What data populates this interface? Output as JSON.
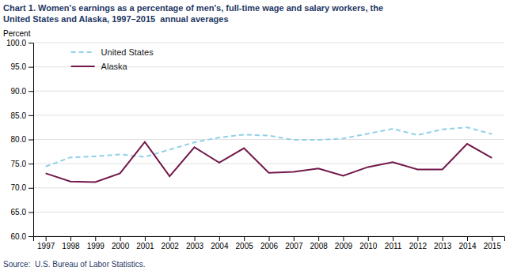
{
  "chart_data": {
    "type": "line",
    "title": [
      "Chart 1. Women's earnings as a percentage of men's, full-time wage and salary workers, the",
      "United States and Alaska, 1997–2015  annual averages"
    ],
    "y_label": "Percent",
    "annotations": [
      "Source:  U.S. Bureau of Labor Statistics."
    ],
    "x": [
      1997,
      1998,
      1999,
      2000,
      2001,
      2002,
      2003,
      2004,
      2005,
      2006,
      2007,
      2008,
      2009,
      2010,
      2011,
      2012,
      2013,
      2014,
      2015
    ],
    "series": [
      {
        "name": "United States",
        "color": "#92d0e8",
        "line_style": "dashed",
        "values": [
          74.4,
          76.3,
          76.5,
          76.9,
          76.4,
          77.9,
          79.4,
          80.4,
          81.0,
          80.8,
          79.9,
          79.9,
          80.2,
          81.2,
          82.2,
          80.9,
          82.1,
          82.5,
          81.1
        ]
      },
      {
        "name": "Alaska",
        "color": "#72184a",
        "line_style": "solid",
        "values": [
          73.0,
          71.3,
          71.2,
          73.0,
          79.5,
          72.4,
          78.4,
          75.2,
          78.2,
          73.1,
          73.3,
          74.0,
          72.5,
          74.3,
          75.3,
          73.8,
          73.8,
          79.1,
          76.2
        ]
      }
    ],
    "xlim": [
      1996.5,
      2015.5
    ],
    "xticks": [
      1997,
      1998,
      1999,
      2000,
      2001,
      2002,
      2003,
      2004,
      2005,
      2006,
      2007,
      2008,
      2009,
      2010,
      2011,
      2012,
      2013,
      2014,
      2015
    ],
    "ylim": [
      60.0,
      100.0
    ],
    "yticks": [
      {
        "value": 60.0,
        "label": "60.0"
      },
      {
        "value": 65.0,
        "label": "65.0"
      },
      {
        "value": 70.0,
        "label": "70.0"
      },
      {
        "value": 75.0,
        "label": "75.0"
      },
      {
        "value": 80.0,
        "label": "80.0"
      },
      {
        "value": 85.0,
        "label": "85.0"
      },
      {
        "value": 90.0,
        "label": "90.0"
      },
      {
        "value": 95.0,
        "label": "95.0"
      },
      {
        "value": 100.0,
        "label": "100.0"
      }
    ],
    "grid": true,
    "legend": "upper left"
  }
}
